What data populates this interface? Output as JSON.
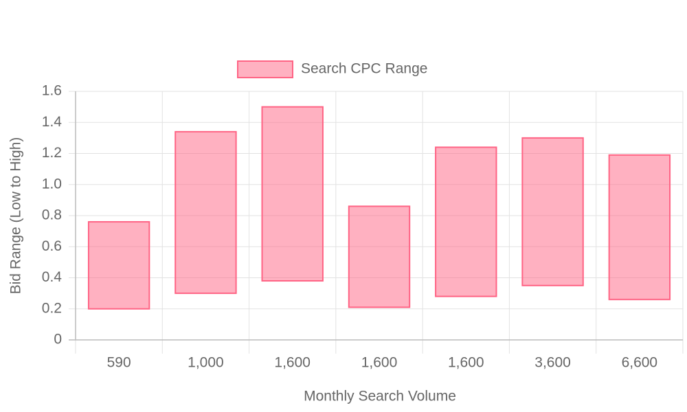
{
  "chart_data": {
    "type": "floating-bar",
    "x_label": "Monthly Search Volume",
    "y_label": "Bid Range (Low to High)",
    "categories": [
      "590",
      "1,000",
      "1,600",
      "1,600",
      "1,600",
      "3,600",
      "6,600"
    ],
    "series": [
      {
        "name": "Search CPC Range",
        "color": "#ff6384",
        "values": [
          [
            0.2,
            0.76
          ],
          [
            0.3,
            1.34
          ],
          [
            0.38,
            1.5
          ],
          [
            0.21,
            0.86
          ],
          [
            0.28,
            1.24
          ],
          [
            0.35,
            1.3
          ],
          [
            0.26,
            1.19
          ]
        ]
      }
    ],
    "ylim": [
      0,
      1.6
    ],
    "yticks": [
      0,
      0.2,
      0.4,
      0.6,
      0.8,
      {
        "value": 1,
        "label": "1.0"
      },
      1.2,
      1.4,
      1.6
    ],
    "grid": true,
    "legend": "top"
  }
}
